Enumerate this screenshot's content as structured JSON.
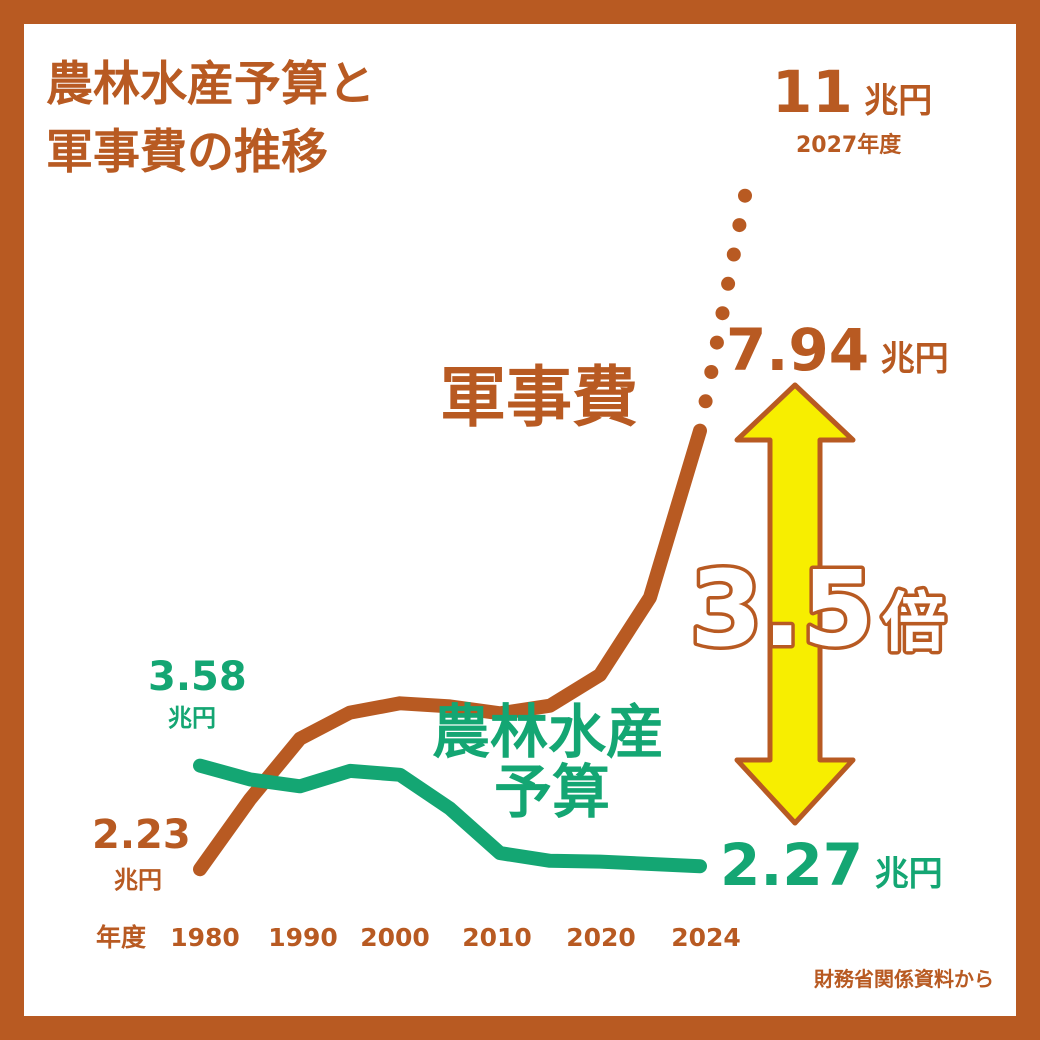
{
  "title_line1": "農林水産予算と",
  "title_line2": "軍事費の推移",
  "source": "財務省関係資料から",
  "x_axis_unit": "年度",
  "ratio_label_number": "3.5",
  "ratio_label_suffix": "倍",
  "colors": {
    "frame": "#b85a22",
    "military": "#b85a22",
    "agriculture": "#14a673",
    "arrow_fill": "#f7ee00",
    "arrow_stroke": "#b85a22",
    "ratio_text_fill": "#ffffff",
    "ratio_text_stroke": "#b85a22"
  },
  "chart_data": {
    "type": "line",
    "title": "農林水産予算と軍事費の推移",
    "x_tick_labels": [
      "1980",
      "1990",
      "2000",
      "2010",
      "2020",
      "2024"
    ],
    "series": [
      {
        "name": "軍事費",
        "points": [
          [
            1980,
            2.23
          ],
          [
            1985,
            3.14
          ],
          [
            1990,
            3.93
          ],
          [
            1995,
            4.27
          ],
          [
            2000,
            4.39
          ],
          [
            2005,
            4.35
          ],
          [
            2010,
            4.26
          ],
          [
            2015,
            4.36
          ],
          [
            2020,
            4.76
          ],
          [
            2022,
            5.77
          ],
          [
            2024,
            7.94
          ]
        ],
        "projection": [
          [
            2024,
            7.94
          ],
          [
            2027,
            11
          ]
        ],
        "start_label_value": "2.23",
        "start_label_unit": "兆円",
        "end_label_value": "7.94",
        "end_label_unit": "兆円",
        "projection_label_value": "11",
        "projection_label_unit": "兆円",
        "projection_label_year": "2027年度"
      },
      {
        "name": "農林水産予算",
        "name_line1": "農林水産",
        "name_line2": "予算",
        "points": [
          [
            1980,
            3.58
          ],
          [
            1985,
            3.4
          ],
          [
            1990,
            3.31
          ],
          [
            1995,
            3.51
          ],
          [
            2000,
            3.46
          ],
          [
            2005,
            3.02
          ],
          [
            2010,
            2.44
          ],
          [
            2015,
            2.34
          ],
          [
            2020,
            2.33
          ],
          [
            2024,
            2.27
          ]
        ],
        "start_label_value": "3.58",
        "start_label_unit": "兆円",
        "end_label_value": "2.27",
        "end_label_unit": "兆円"
      }
    ],
    "annotation": "3.5倍"
  }
}
